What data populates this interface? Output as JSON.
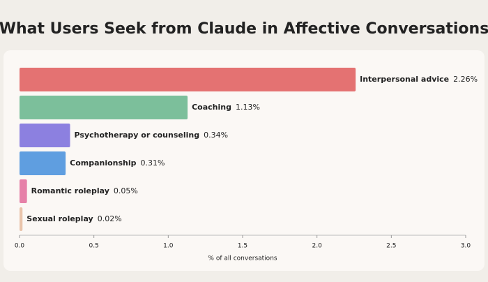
{
  "chart_data": {
    "type": "hbar",
    "title": "What Users Seek from Claude in Affective Conversations",
    "categories": [
      "Interpersonal advice",
      "Coaching",
      "Psychotherapy or counseling",
      "Companionship",
      "Romantic roleplay",
      "Sexual roleplay"
    ],
    "values": [
      2.26,
      1.13,
      0.34,
      0.31,
      0.05,
      0.02
    ],
    "value_labels": [
      "2.26%",
      "1.13%",
      "0.34%",
      "0.31%",
      "0.05%",
      "0.02%"
    ],
    "colors": [
      "#e47272",
      "#7cbf9b",
      "#8c80e0",
      "#5f9ee0",
      "#e681a8",
      "#e9c4ab"
    ],
    "xlabel": "% of all conversations",
    "xlim": [
      0,
      3.0
    ],
    "xticks": [
      {
        "value": 0,
        "label": "0.0"
      },
      0.5,
      {
        "value": 1,
        "label": "1.0"
      },
      1.5,
      {
        "value": 2,
        "label": "2.0"
      },
      2.5,
      {
        "value": 3,
        "label": "3.0"
      }
    ]
  }
}
